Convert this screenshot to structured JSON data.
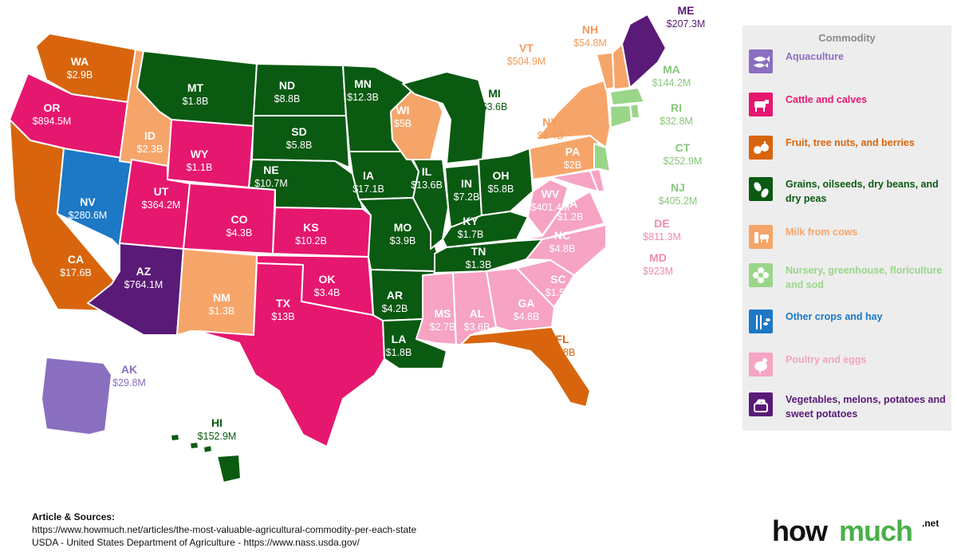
{
  "colors": {
    "aquaculture": "#8a6fc0",
    "cattle": "#e6176f",
    "fruit": "#d8650d",
    "grains": "#0a5a12",
    "milk": "#f6a56a",
    "nursery": "#9ad68a",
    "other_crops": "#1d78c6",
    "poultry": "#f6a3c4",
    "vegetables": "#5a1a78"
  },
  "states": [
    {
      "code": "WA",
      "value": "$2.9B",
      "commodity": "fruit"
    },
    {
      "code": "OR",
      "value": "$894.5M",
      "commodity": "cattle"
    },
    {
      "code": "CA",
      "value": "$17.6B",
      "commodity": "fruit"
    },
    {
      "code": "NV",
      "value": "$280.6M",
      "commodity": "other_crops"
    },
    {
      "code": "ID",
      "value": "$2.3B",
      "commodity": "milk"
    },
    {
      "code": "MT",
      "value": "$1.8B",
      "commodity": "grains"
    },
    {
      "code": "WY",
      "value": "$1.1B",
      "commodity": "cattle"
    },
    {
      "code": "UT",
      "value": "$364.2M",
      "commodity": "cattle"
    },
    {
      "code": "CO",
      "value": "$4.3B",
      "commodity": "cattle"
    },
    {
      "code": "AZ",
      "value": "$764.1M",
      "commodity": "vegetables"
    },
    {
      "code": "NM",
      "value": "$1.3B",
      "commodity": "milk"
    },
    {
      "code": "ND",
      "value": "$8.8B",
      "commodity": "grains"
    },
    {
      "code": "SD",
      "value": "$5.8B",
      "commodity": "grains"
    },
    {
      "code": "NE",
      "value": "$10.7M",
      "commodity": "grains"
    },
    {
      "code": "KS",
      "value": "$10.2B",
      "commodity": "cattle"
    },
    {
      "code": "OK",
      "value": "$3.4B",
      "commodity": "cattle"
    },
    {
      "code": "TX",
      "value": "$13B",
      "commodity": "cattle"
    },
    {
      "code": "MN",
      "value": "$12.3B",
      "commodity": "grains"
    },
    {
      "code": "IA",
      "value": "$17.1B",
      "commodity": "grains"
    },
    {
      "code": "MO",
      "value": "$3.9B",
      "commodity": "grains"
    },
    {
      "code": "AR",
      "value": "$4.2B",
      "commodity": "grains"
    },
    {
      "code": "LA",
      "value": "$1.8B",
      "commodity": "grains"
    },
    {
      "code": "WI",
      "value": "$5B",
      "commodity": "milk"
    },
    {
      "code": "IL",
      "value": "$13.6B",
      "commodity": "grains"
    },
    {
      "code": "MI",
      "value": "$3.6B",
      "commodity": "grains"
    },
    {
      "code": "IN",
      "value": "$7.2B",
      "commodity": "grains"
    },
    {
      "code": "OH",
      "value": "$5.8B",
      "commodity": "grains"
    },
    {
      "code": "KY",
      "value": "$1.7B",
      "commodity": "grains"
    },
    {
      "code": "TN",
      "value": "$1.3B",
      "commodity": "grains"
    },
    {
      "code": "MS",
      "value": "$2.7B",
      "commodity": "poultry"
    },
    {
      "code": "AL",
      "value": "$3.6B",
      "commodity": "poultry"
    },
    {
      "code": "GA",
      "value": "$4.8B",
      "commodity": "poultry"
    },
    {
      "code": "FL",
      "value": "$1.8B",
      "commodity": "fruit"
    },
    {
      "code": "SC",
      "value": "$1.5B",
      "commodity": "poultry"
    },
    {
      "code": "NC",
      "value": "$4.8B",
      "commodity": "poultry"
    },
    {
      "code": "VA",
      "value": "$1.2B",
      "commodity": "poultry"
    },
    {
      "code": "WV",
      "value": "$401.4M",
      "commodity": "poultry"
    },
    {
      "code": "PA",
      "value": "$2B",
      "commodity": "milk"
    },
    {
      "code": "NY",
      "value": "$2.4B",
      "commodity": "milk"
    },
    {
      "code": "VT",
      "value": "$504.9M",
      "commodity": "milk"
    },
    {
      "code": "NH",
      "value": "$54.8M",
      "commodity": "milk"
    },
    {
      "code": "ME",
      "value": "$207.3M",
      "commodity": "vegetables"
    },
    {
      "code": "MA",
      "value": "$144.2M",
      "commodity": "nursery"
    },
    {
      "code": "RI",
      "value": "$32.8M",
      "commodity": "nursery"
    },
    {
      "code": "CT",
      "value": "$252.9M",
      "commodity": "nursery"
    },
    {
      "code": "NJ",
      "value": "$405.2M",
      "commodity": "nursery"
    },
    {
      "code": "DE",
      "value": "$811.3M",
      "commodity": "poultry"
    },
    {
      "code": "MD",
      "value": "$923M",
      "commodity": "poultry"
    },
    {
      "code": "AK",
      "value": "$29.8M",
      "commodity": "aquaculture"
    },
    {
      "code": "HI",
      "value": "$152.9M",
      "commodity": "grains"
    }
  ],
  "legend": {
    "title": "Commodity",
    "items": [
      {
        "key": "aquaculture",
        "label": "Aquaculture",
        "icon": "fish-icon"
      },
      {
        "key": "cattle",
        "label": "Cattle and calves",
        "icon": "cow-icon"
      },
      {
        "key": "fruit",
        "label": "Fruit, tree nuts, and berries",
        "icon": "fruit-icon"
      },
      {
        "key": "grains",
        "label": "Grains, oilseeds, dry beans, and dry peas",
        "icon": "bean-icon"
      },
      {
        "key": "milk",
        "label": "Milk from cows",
        "icon": "milk-icon"
      },
      {
        "key": "nursery",
        "label": "Nursery, greenhouse, floriculture and sod",
        "icon": "flower-icon"
      },
      {
        "key": "other_crops",
        "label": "Other crops and hay",
        "icon": "wheat-icon"
      },
      {
        "key": "poultry",
        "label": "Poultry and eggs",
        "icon": "chicken-icon"
      },
      {
        "key": "vegetables",
        "label": "Vegetables, melons, potatoes and sweet potatoes",
        "icon": "basket-icon"
      }
    ]
  },
  "sources": {
    "title": "Article & Sources:",
    "line1": "https://www.howmuch.net/articles/the-most-valuable-agricultural-commodity-per-each-state",
    "line2": "USDA - United States Department of Agriculture - https://www.nass.usda.gov/"
  },
  "logo": {
    "part1": "how",
    "part2": "much",
    "suffix": ".net"
  }
}
